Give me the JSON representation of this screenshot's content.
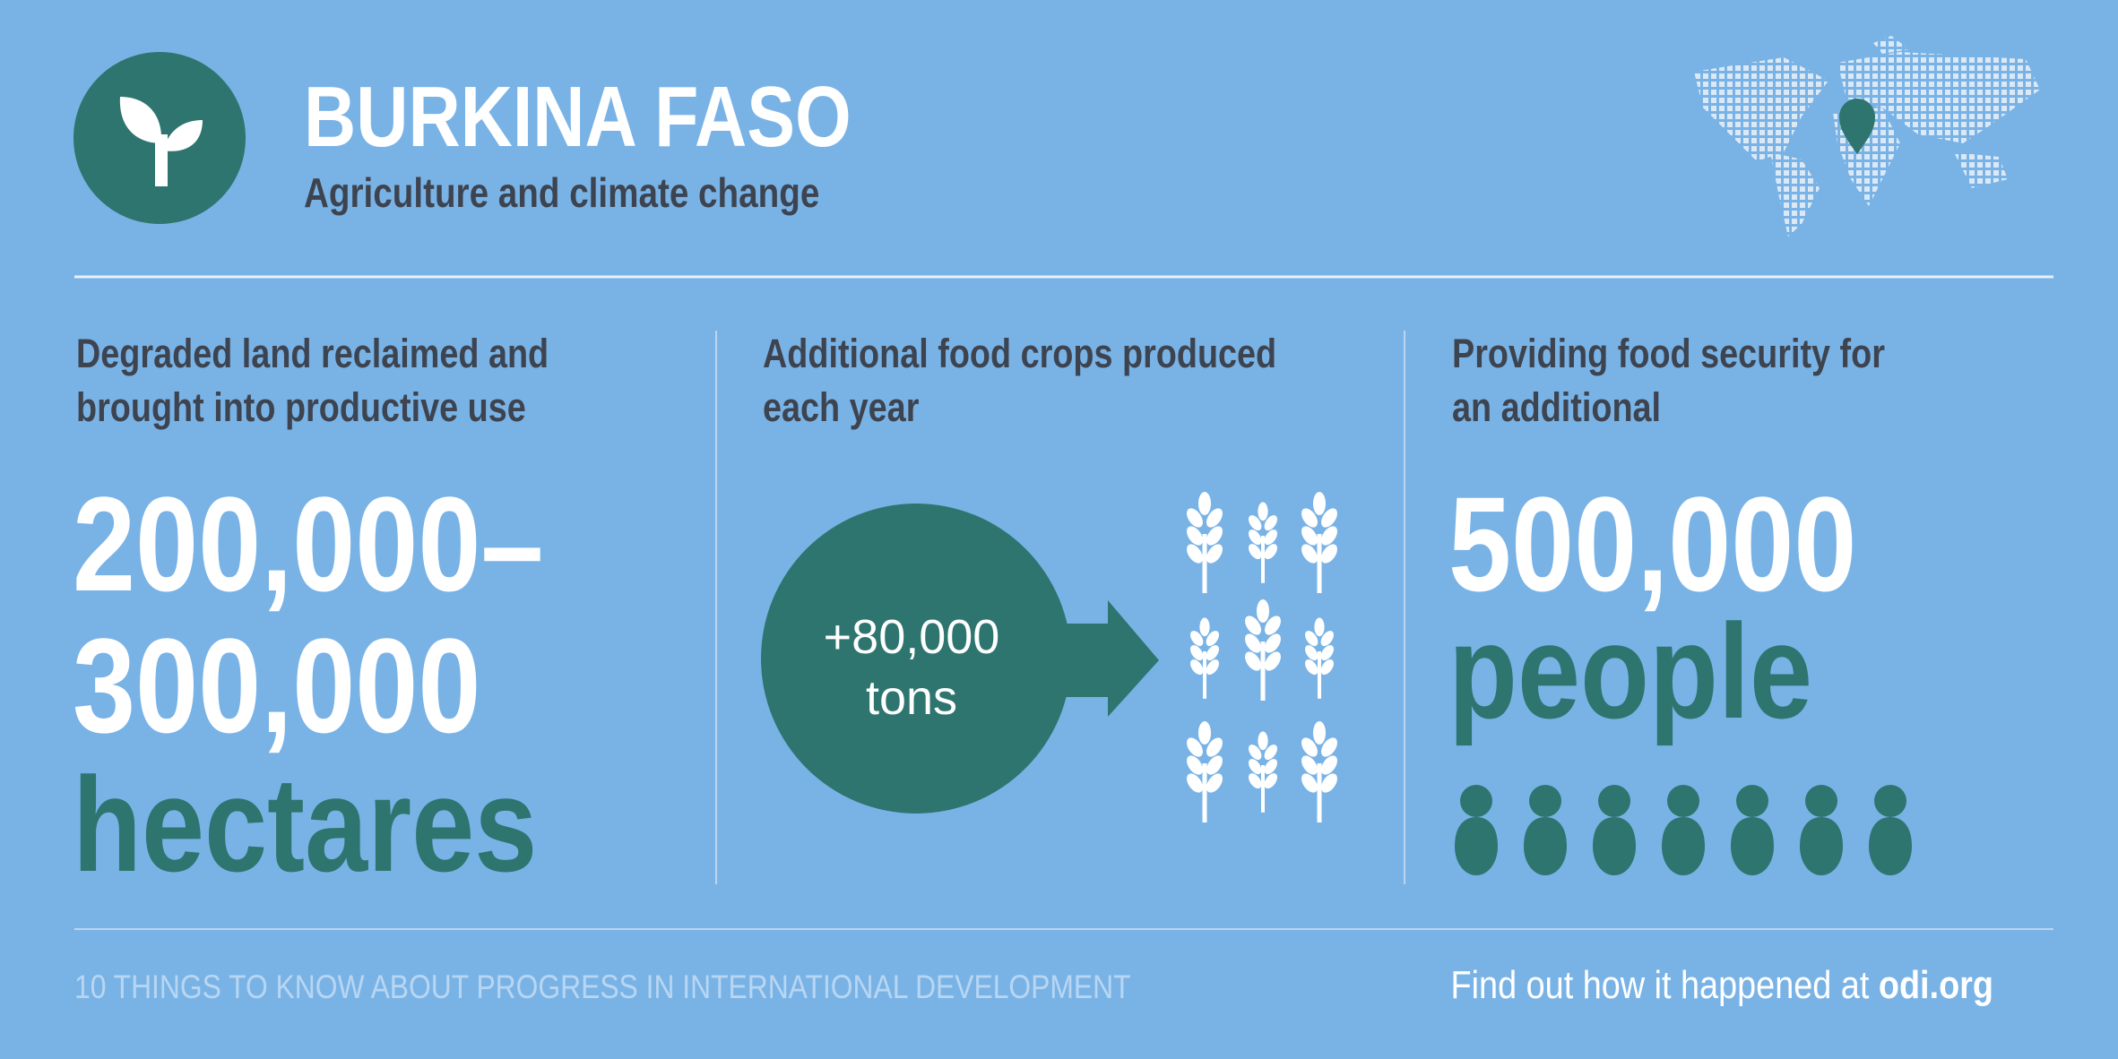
{
  "header": {
    "title": "BURKINA FASO",
    "subtitle": "Agriculture and climate change"
  },
  "panels": [
    {
      "heading": [
        "Degraded land reclaimed and",
        "brought into productive use"
      ],
      "value_lines": [
        "200,000–",
        "300,000"
      ],
      "unit": "hectares"
    },
    {
      "heading": [
        "Additional food crops produced",
        "each year"
      ],
      "circle_lines": [
        "+80,000",
        "tons"
      ]
    },
    {
      "heading": [
        "Providing food security for",
        "an additional"
      ],
      "value_lines": [
        "500,000"
      ],
      "unit": "people"
    }
  ],
  "footer": {
    "series_title": "10 THINGS TO KNOW ABOUT PROGRESS IN INTERNATIONAL DEVELOPMENT",
    "cta_prefix": "Find out how it happened at ",
    "cta_link": "odi.org"
  }
}
